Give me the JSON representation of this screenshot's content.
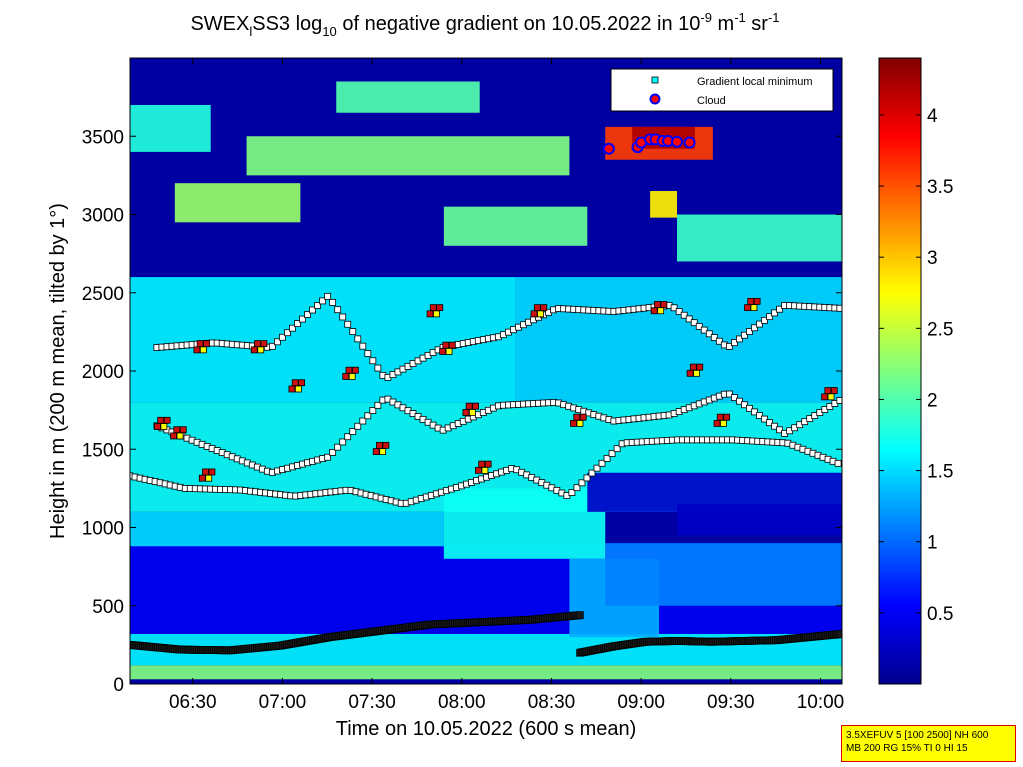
{
  "chart_data": {
    "type": "heatmap",
    "title": {
      "prefix": "SWEX",
      "prefix_sub": "l",
      "main": "SS3 log",
      "main_sub": "10",
      "rest": " of negative gradient on 10.05.2022 in 10",
      "sup1": "-9",
      "unit_m": " m",
      "sup2": "-1",
      "unit_sr": " sr",
      "sup3": "-1"
    },
    "xlabel": "Time on 10.05.2022 (600 s mean)",
    "ylabel": "Height in m (200 m mean, tilted by 1°)",
    "x_range_hours": [
      6.15,
      10.12
    ],
    "x_ticks": [
      {
        "value": 6.5,
        "label": "06:30"
      },
      {
        "value": 7.0,
        "label": "07:00"
      },
      {
        "value": 7.5,
        "label": "07:30"
      },
      {
        "value": 8.0,
        "label": "08:00"
      },
      {
        "value": 8.5,
        "label": "08:30"
      },
      {
        "value": 9.0,
        "label": "09:00"
      },
      {
        "value": 9.5,
        "label": "09:30"
      },
      {
        "value": 10.0,
        "label": "10:00"
      }
    ],
    "y_range": [
      0,
      4000
    ],
    "y_ticks": [
      0,
      500,
      1000,
      1500,
      2000,
      2500,
      3000,
      3500
    ],
    "colorbar": {
      "range": [
        0,
        4.4
      ],
      "ticks": [
        0.5,
        1,
        1.5,
        2,
        2.5,
        3,
        3.5,
        4
      ],
      "colormap": "jet"
    },
    "legend": {
      "placement": "top-right",
      "entries": [
        {
          "label": "Gradient local minimum",
          "marker": "square",
          "color": "#00ffff"
        },
        {
          "label": "Cloud",
          "marker": "circle",
          "color": "#ff0000",
          "edge": "#0000ff"
        }
      ]
    },
    "background_level": 0.15,
    "bands": [
      {
        "t0": 6.15,
        "t1": 10.12,
        "h0": 30,
        "h1": 120,
        "value": 2.2
      },
      {
        "t0": 6.15,
        "t1": 10.12,
        "h0": 120,
        "h1": 320,
        "value": 1.6
      },
      {
        "t0": 6.15,
        "t1": 10.12,
        "h0": 320,
        "h1": 500,
        "value": 0.5
      },
      {
        "t0": 6.15,
        "t1": 10.12,
        "h0": 500,
        "h1": 900,
        "value": 0.5
      },
      {
        "t0": 6.15,
        "t1": 7.9,
        "h0": 880,
        "h1": 1100,
        "value": 1.5
      },
      {
        "t0": 7.9,
        "t1": 8.8,
        "h0": 800,
        "h1": 1250,
        "value": 1.7
      },
      {
        "t0": 8.6,
        "t1": 9.1,
        "h0": 300,
        "h1": 800,
        "value": 1.3
      },
      {
        "t0": 8.8,
        "t1": 10.12,
        "h0": 500,
        "h1": 900,
        "value": 1.1
      },
      {
        "t0": 6.15,
        "t1": 10.12,
        "h0": 1100,
        "h1": 1800,
        "value": 1.7
      },
      {
        "t0": 6.15,
        "t1": 8.3,
        "h0": 1800,
        "h1": 2600,
        "value": 1.6
      },
      {
        "t0": 8.3,
        "t1": 10.12,
        "h0": 1800,
        "h1": 2600,
        "value": 1.5
      },
      {
        "t0": 8.7,
        "t1": 10.12,
        "h0": 1100,
        "h1": 1350,
        "value": 0.3
      },
      {
        "t0": 9.2,
        "t1": 10.12,
        "h0": 950,
        "h1": 1150,
        "value": 0.3
      },
      {
        "t0": 6.4,
        "t1": 7.1,
        "h0": 2950,
        "h1": 3200,
        "value": 2.3
      },
      {
        "t0": 6.8,
        "t1": 8.6,
        "h0": 3250,
        "h1": 3500,
        "value": 2.2
      },
      {
        "t0": 7.3,
        "t1": 8.1,
        "h0": 3650,
        "h1": 3850,
        "value": 2.0
      },
      {
        "t0": 6.15,
        "t1": 6.6,
        "h0": 3400,
        "h1": 3700,
        "value": 1.8
      },
      {
        "t0": 7.9,
        "t1": 8.7,
        "h0": 2800,
        "h1": 3050,
        "value": 2.1
      },
      {
        "t0": 9.2,
        "t1": 10.12,
        "h0": 2700,
        "h1": 3000,
        "value": 1.9
      },
      {
        "t0": 8.8,
        "t1": 9.4,
        "h0": 3350,
        "h1": 3560,
        "value": 3.6
      },
      {
        "t0": 8.95,
        "t1": 9.3,
        "h0": 3420,
        "h1": 3560,
        "value": 4.2
      },
      {
        "t0": 9.05,
        "t1": 9.2,
        "h0": 2980,
        "h1": 3150,
        "value": 2.8
      }
    ],
    "series": [
      {
        "name": "Gradient local minimum",
        "layers": [
          {
            "t0": 6.15,
            "t1": 8.66,
            "h": [
              250,
              220,
              215,
              245,
              300,
              340,
              380,
              395,
              410,
              440
            ],
            "dense": true
          },
          {
            "t0": 8.66,
            "t1": 10.12,
            "h": [
              200,
              240,
              270,
              275,
              270,
              275,
              280,
              300,
              320
            ],
            "dense": true
          },
          {
            "t0": 6.15,
            "t1": 10.12,
            "h": [
              1330,
              1250,
              1240,
              1200,
              1240,
              1150,
              1260,
              1380,
              1200,
              1540,
              1560,
              1560,
              1540,
              1400
            ],
            "dense": false
          },
          {
            "t0": 6.3,
            "t1": 10.12,
            "h": [
              1650,
              1500,
              1350,
              1450,
              1830,
              1620,
              1780,
              1800,
              1680,
              1720,
              1860,
              1600,
              1820
            ],
            "dense": false
          },
          {
            "t0": 6.3,
            "t1": 10.12,
            "h": [
              2150,
              2180,
              2150,
              2480,
              1950,
              2150,
              2220,
              2400,
              2380,
              2420,
              2150,
              2420,
              2400
            ],
            "dense": false
          }
        ],
        "red_clusters": [
          {
            "t": 6.33,
            "h": 1660
          },
          {
            "t": 6.42,
            "h": 1600
          },
          {
            "t": 6.55,
            "h": 2150
          },
          {
            "t": 6.58,
            "h": 1330
          },
          {
            "t": 6.87,
            "h": 2150
          },
          {
            "t": 7.08,
            "h": 1900
          },
          {
            "t": 7.38,
            "h": 1980
          },
          {
            "t": 7.55,
            "h": 1500
          },
          {
            "t": 7.85,
            "h": 2380
          },
          {
            "t": 7.92,
            "h": 2140
          },
          {
            "t": 8.05,
            "h": 1750
          },
          {
            "t": 8.12,
            "h": 1380
          },
          {
            "t": 8.43,
            "h": 2380
          },
          {
            "t": 8.65,
            "h": 1680
          },
          {
            "t": 9.1,
            "h": 2400
          },
          {
            "t": 9.3,
            "h": 2000
          },
          {
            "t": 9.45,
            "h": 1680
          },
          {
            "t": 9.62,
            "h": 2420
          },
          {
            "t": 10.05,
            "h": 1850
          }
        ]
      },
      {
        "name": "Cloud",
        "points": [
          {
            "t": 8.82,
            "h": 3420
          },
          {
            "t": 8.98,
            "h": 3430
          },
          {
            "t": 9.0,
            "h": 3460
          },
          {
            "t": 9.05,
            "h": 3480
          },
          {
            "t": 9.08,
            "h": 3480
          },
          {
            "t": 9.12,
            "h": 3470
          },
          {
            "t": 9.15,
            "h": 3470
          },
          {
            "t": 9.2,
            "h": 3465
          },
          {
            "t": 9.27,
            "h": 3460
          }
        ]
      }
    ]
  },
  "info_box": {
    "line1": "3.5XEFUV 5 [100 2500] NH 600",
    "line2": "MB 200 RG 15% TI 0 HI 15"
  }
}
